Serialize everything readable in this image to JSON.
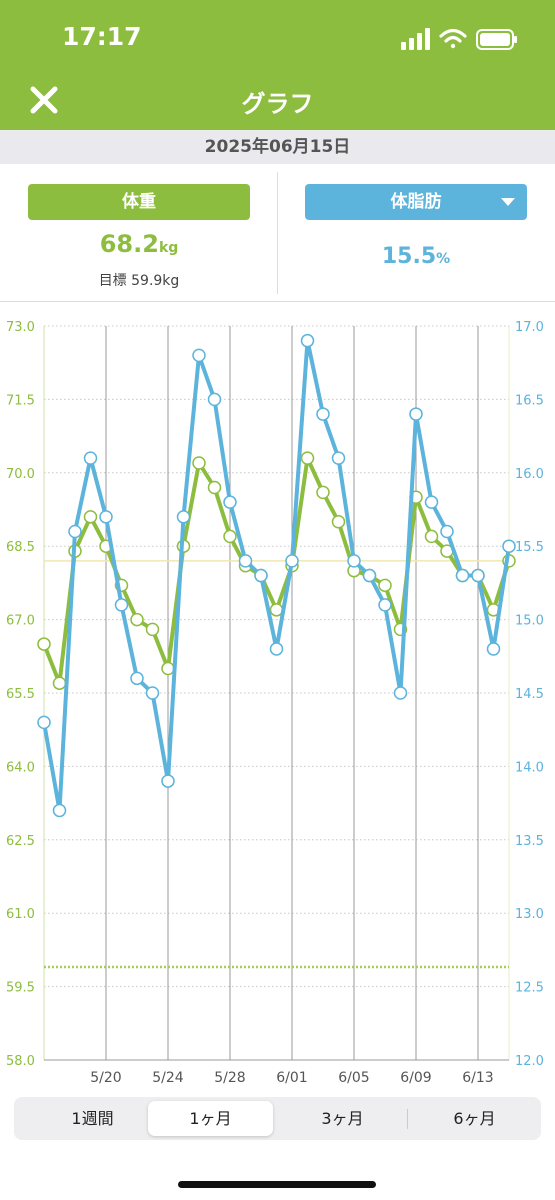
{
  "status": {
    "time": "17:17"
  },
  "nav": {
    "title": "グラフ",
    "close_icon": "close-icon"
  },
  "date": "2025年06月15日",
  "weight": {
    "label": "体重",
    "value": "68.2",
    "unit": "kg",
    "goal": "目標 59.9kg"
  },
  "fat": {
    "label": "体脂肪",
    "value": "15.5",
    "unit": "%"
  },
  "colors": {
    "weight": "#8dbd3e",
    "fat": "#5cb3dc",
    "header": "#8dbd3e"
  },
  "chart_data": {
    "type": "line",
    "x": [
      "5/16",
      "5/17",
      "5/18",
      "5/19",
      "5/20",
      "5/21",
      "5/22",
      "5/23",
      "5/24",
      "5/25",
      "5/26",
      "5/27",
      "5/28",
      "5/29",
      "5/30",
      "5/31",
      "6/01",
      "6/02",
      "6/03",
      "6/04",
      "6/05",
      "6/06",
      "6/07",
      "6/08",
      "6/09",
      "6/10",
      "6/11",
      "6/12",
      "6/13",
      "6/14",
      "6/15"
    ],
    "x_tick_labels": [
      "5/20",
      "5/24",
      "5/28",
      "6/01",
      "6/05",
      "6/09",
      "6/13"
    ],
    "y_left_ticks": [
      "73.0",
      "71.5",
      "70.0",
      "68.5",
      "67.0",
      "65.5",
      "64.0",
      "62.5",
      "61.0",
      "59.5",
      "58.0"
    ],
    "y_right_ticks": [
      "17.0",
      "16.5",
      "16.0",
      "15.5",
      "15.0",
      "14.5",
      "14.0",
      "13.5",
      "13.0",
      "12.5",
      "12.0"
    ],
    "ylim_left": [
      58,
      73
    ],
    "ylim_right": [
      12,
      17
    ],
    "goal_line": 59.9,
    "series": [
      {
        "axis": "left",
        "color": "#8dbd3e",
        "values": [
          66.5,
          65.7,
          68.4,
          69.1,
          68.5,
          67.7,
          67.0,
          66.8,
          66.0,
          68.5,
          70.2,
          69.7,
          68.7,
          68.1,
          67.9,
          67.2,
          68.1,
          70.3,
          69.6,
          69.0,
          68.0,
          67.9,
          67.7,
          66.8,
          69.5,
          68.7,
          68.4,
          67.9,
          67.9,
          67.2,
          68.2
        ]
      },
      {
        "axis": "right",
        "color": "#5cb3dc",
        "values": [
          14.3,
          13.7,
          15.6,
          16.1,
          15.7,
          15.1,
          14.6,
          14.5,
          13.9,
          15.7,
          16.8,
          16.5,
          15.8,
          15.4,
          15.3,
          14.8,
          15.4,
          16.9,
          16.4,
          16.1,
          15.4,
          15.3,
          15.1,
          14.5,
          16.4,
          15.8,
          15.6,
          15.3,
          15.3,
          14.8,
          15.5
        ]
      }
    ]
  },
  "periods": [
    "1週間",
    "1ヶ月",
    "3ヶ月",
    "6ヶ月"
  ],
  "active_period": "1ヶ月"
}
